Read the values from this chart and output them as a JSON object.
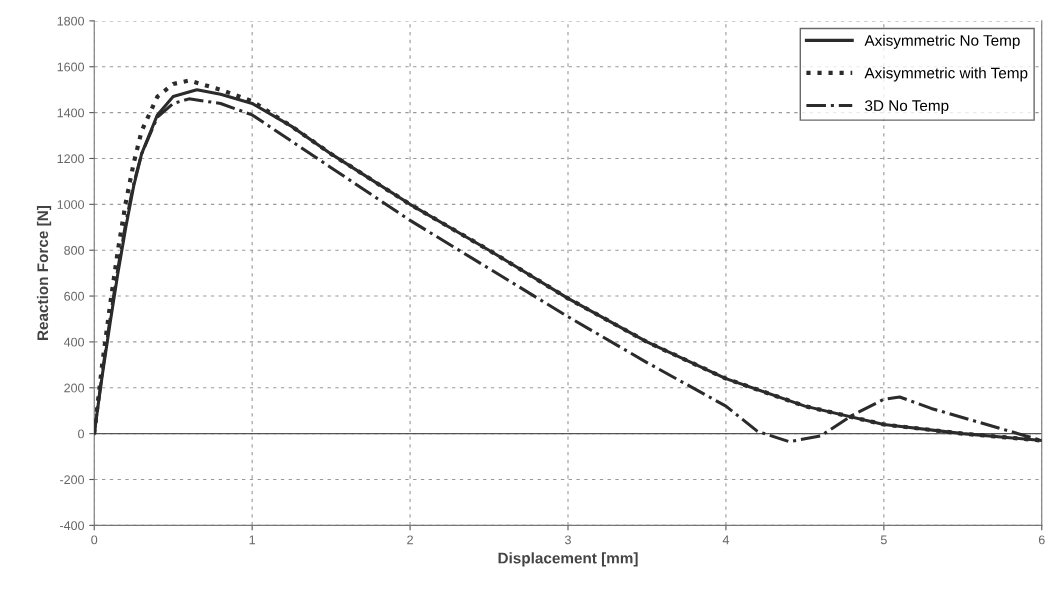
{
  "chart_data": {
    "type": "line",
    "xlabel": "Displacement [mm]",
    "ylabel": "Reaction Force [N]",
    "xlim": [
      0,
      6
    ],
    "xticks": [
      0,
      1,
      2,
      3,
      4,
      5,
      6
    ],
    "ylim": [
      -400,
      1800
    ],
    "yticks": [
      -400,
      -200,
      0,
      200,
      400,
      600,
      800,
      1000,
      1200,
      1400,
      1600,
      1800
    ],
    "grid": true,
    "legend": "top right",
    "ref_lines": [
      {
        "axis": "y",
        "value": 0,
        "color": "#555555",
        "line_style": "solid"
      }
    ],
    "series": [
      {
        "name": "Axisymmetric No Temp",
        "color": "#2b2b2b",
        "line_style": "solid",
        "x": [
          0,
          0.05,
          0.1,
          0.15,
          0.2,
          0.25,
          0.3,
          0.4,
          0.5,
          0.65,
          0.8,
          1.0,
          1.25,
          1.5,
          1.75,
          2.0,
          2.5,
          3.0,
          3.5,
          4.0,
          4.5,
          5.0,
          5.5,
          6.0
        ],
        "values": [
          0,
          250,
          480,
          700,
          900,
          1080,
          1220,
          1390,
          1470,
          1500,
          1480,
          1440,
          1340,
          1220,
          1110,
          1000,
          800,
          590,
          400,
          240,
          120,
          40,
          0,
          -30
        ]
      },
      {
        "name": "Axisymmetric with Temp",
        "color": "#2b2b2b",
        "line_style": "dotted",
        "x": [
          0,
          0.05,
          0.1,
          0.15,
          0.2,
          0.25,
          0.3,
          0.4,
          0.5,
          0.6,
          0.8,
          1.0,
          1.25,
          1.5,
          1.75,
          2.0,
          2.5,
          3.0,
          3.5,
          4.0,
          4.5,
          5.0,
          5.5,
          6.0
        ],
        "values": [
          0,
          300,
          560,
          800,
          1010,
          1180,
          1320,
          1470,
          1525,
          1540,
          1500,
          1450,
          1340,
          1220,
          1110,
          1000,
          800,
          590,
          400,
          240,
          120,
          40,
          0,
          -30
        ]
      },
      {
        "name": "3D No Temp",
        "color": "#2b2b2b",
        "line_style": "dashdot",
        "x": [
          0,
          0.05,
          0.1,
          0.15,
          0.2,
          0.25,
          0.3,
          0.4,
          0.5,
          0.6,
          0.8,
          1.0,
          1.5,
          2.0,
          2.5,
          3.0,
          3.5,
          4.0,
          4.2,
          4.4,
          4.6,
          4.8,
          5.0,
          5.1,
          5.3,
          5.6,
          5.9,
          6.0
        ],
        "values": [
          0,
          260,
          500,
          720,
          920,
          1090,
          1220,
          1380,
          1440,
          1460,
          1440,
          1390,
          1160,
          930,
          720,
          510,
          310,
          120,
          10,
          -35,
          -10,
          80,
          150,
          160,
          110,
          50,
          -10,
          -30
        ]
      }
    ]
  }
}
